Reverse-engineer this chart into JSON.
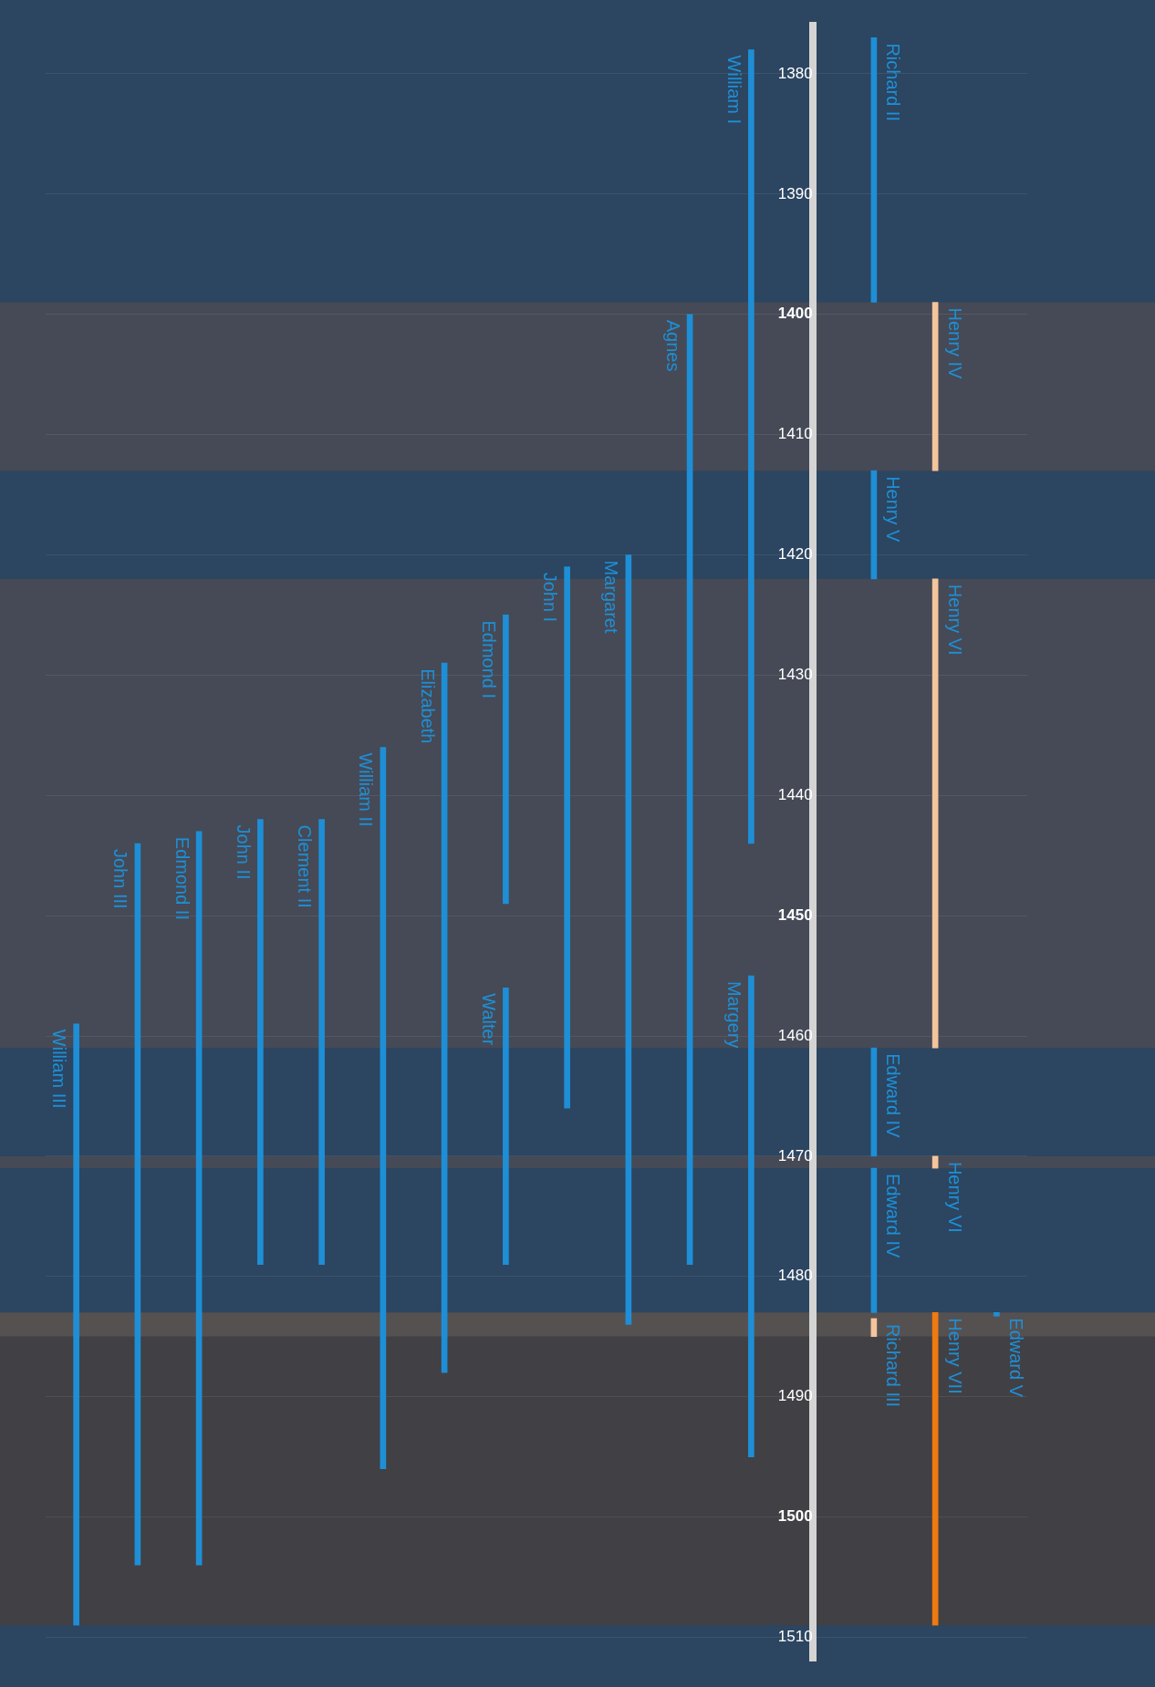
{
  "chart_data": {
    "type": "bar",
    "categories": [
      null,
      null,
      null,
      null,
      null,
      null,
      null,
      null,
      null,
      null,
      null,
      null,
      null,
      null,
      null,
      null
    ],
    "ylim": [
      1512,
      1376
    ],
    "yticks": [
      1380,
      1390,
      1400,
      1410,
      1420,
      1430,
      1440,
      1450,
      1460,
      1470,
      1480,
      1490,
      1500,
      1510
    ],
    "grid": "y",
    "legend": false,
    "tick_labels": "y",
    "bands": [
      {
        "axis": "y",
        "from": 1399,
        "to": 1413,
        "color": "#454a56"
      },
      {
        "axis": "y",
        "from": 1422,
        "to": 1461,
        "color": "#454a56"
      },
      {
        "axis": "y",
        "from": 1470,
        "to": 1471,
        "color": "#454a56"
      },
      {
        "axis": "y",
        "from": 1483,
        "to": 1485,
        "color": "#565151"
      },
      {
        "axis": "y",
        "from": 1485,
        "to": 1509,
        "color": "#414045"
      }
    ],
    "series": [
      {
        "name": "William III",
        "color": "#1e8fd6",
        "values": [
          50,
          null,
          null,
          null,
          null,
          null,
          null,
          null,
          null,
          null,
          null,
          null,
          null,
          null,
          null,
          null
        ],
        "base": [
          1459,
          null,
          null,
          null,
          null,
          null,
          null,
          null,
          null,
          null,
          null,
          null,
          null,
          null,
          null,
          null
        ]
      },
      {
        "name": "John III",
        "color": "#1e8fd6",
        "values": [
          null,
          60,
          null,
          null,
          null,
          null,
          null,
          null,
          null,
          null,
          null,
          null,
          null,
          null,
          null,
          null
        ],
        "base": [
          null,
          1444,
          null,
          null,
          null,
          null,
          null,
          null,
          null,
          null,
          null,
          null,
          null,
          null,
          null,
          null
        ]
      },
      {
        "name": "Edmond II",
        "color": "#1e8fd6",
        "values": [
          null,
          null,
          61,
          null,
          null,
          null,
          null,
          null,
          null,
          null,
          null,
          null,
          null,
          null,
          null,
          null
        ],
        "base": [
          null,
          null,
          1443,
          null,
          null,
          null,
          null,
          null,
          null,
          null,
          null,
          null,
          null,
          null,
          null,
          null
        ]
      },
      {
        "name": "John II",
        "color": "#1e8fd6",
        "values": [
          null,
          null,
          null,
          37,
          null,
          null,
          null,
          null,
          null,
          null,
          null,
          null,
          null,
          null,
          null,
          null
        ],
        "base": [
          null,
          null,
          null,
          1442,
          null,
          null,
          null,
          null,
          null,
          null,
          null,
          null,
          null,
          null,
          null,
          null
        ]
      },
      {
        "name": "Clement II",
        "color": "#1e8fd6",
        "values": [
          null,
          null,
          null,
          null,
          37,
          null,
          null,
          null,
          null,
          null,
          null,
          null,
          null,
          null,
          null,
          null
        ],
        "base": [
          null,
          null,
          null,
          null,
          1442,
          null,
          null,
          null,
          null,
          null,
          null,
          null,
          null,
          null,
          null,
          null
        ]
      },
      {
        "name": "William II",
        "color": "#1e8fd6",
        "values": [
          null,
          null,
          null,
          null,
          null,
          60,
          null,
          null,
          null,
          null,
          null,
          null,
          null,
          null,
          null,
          null
        ],
        "base": [
          null,
          null,
          null,
          null,
          null,
          1436,
          null,
          null,
          null,
          null,
          null,
          null,
          null,
          null,
          null,
          null
        ]
      },
      {
        "name": "Elizabeth",
        "color": "#1e8fd6",
        "values": [
          null,
          null,
          null,
          null,
          null,
          null,
          59,
          null,
          null,
          null,
          null,
          null,
          null,
          null,
          null,
          null
        ],
        "base": [
          null,
          null,
          null,
          null,
          null,
          null,
          1429,
          null,
          null,
          null,
          null,
          null,
          null,
          null,
          null,
          null
        ]
      },
      {
        "name": "Edmond I",
        "color": "#1e8fd6",
        "values": [
          null,
          null,
          null,
          null,
          null,
          null,
          null,
          24,
          null,
          null,
          null,
          null,
          null,
          null,
          null,
          null
        ],
        "base": [
          null,
          null,
          null,
          null,
          null,
          null,
          null,
          1425,
          null,
          null,
          null,
          null,
          null,
          null,
          null,
          null
        ]
      },
      {
        "name": "Walter",
        "color": "#1e8fd6",
        "values": [
          null,
          null,
          null,
          null,
          null,
          null,
          null,
          23,
          null,
          null,
          null,
          null,
          null,
          null,
          null,
          null
        ],
        "base": [
          null,
          null,
          null,
          null,
          null,
          null,
          null,
          1456,
          null,
          null,
          null,
          null,
          null,
          null,
          null,
          null
        ]
      },
      {
        "name": "John I",
        "color": "#1e8fd6",
        "values": [
          null,
          null,
          null,
          null,
          null,
          null,
          null,
          null,
          45,
          null,
          null,
          null,
          null,
          null,
          null,
          null
        ],
        "base": [
          null,
          null,
          null,
          null,
          null,
          null,
          null,
          null,
          1421,
          null,
          null,
          null,
          null,
          null,
          null,
          null
        ]
      },
      {
        "name": "Margaret",
        "color": "#1e8fd6",
        "values": [
          null,
          null,
          null,
          null,
          null,
          null,
          null,
          null,
          null,
          64,
          null,
          null,
          null,
          null,
          null,
          null
        ],
        "base": [
          null,
          null,
          null,
          null,
          null,
          null,
          null,
          null,
          null,
          1420,
          null,
          null,
          null,
          null,
          null,
          null
        ]
      },
      {
        "name": "Agnes",
        "color": "#1e8fd6",
        "values": [
          null,
          null,
          null,
          null,
          null,
          null,
          null,
          null,
          null,
          null,
          79,
          null,
          null,
          null,
          null,
          null
        ],
        "base": [
          null,
          null,
          null,
          null,
          null,
          null,
          null,
          null,
          null,
          null,
          1400,
          null,
          null,
          null,
          null,
          null
        ]
      },
      {
        "name": "William I",
        "color": "#1e8fd6",
        "values": [
          null,
          null,
          null,
          null,
          null,
          null,
          null,
          null,
          null,
          null,
          null,
          66,
          null,
          null,
          null,
          null
        ],
        "base": [
          null,
          null,
          null,
          null,
          null,
          null,
          null,
          null,
          null,
          null,
          null,
          1378,
          null,
          null,
          null,
          null
        ]
      },
      {
        "name": "Margery",
        "color": "#1e8fd6",
        "values": [
          null,
          null,
          null,
          null,
          null,
          null,
          null,
          null,
          null,
          null,
          null,
          40,
          null,
          null,
          null,
          null
        ],
        "base": [
          null,
          null,
          null,
          null,
          null,
          null,
          null,
          null,
          null,
          null,
          null,
          1455,
          null,
          null,
          null,
          null
        ]
      },
      {
        "name": "Richard II",
        "color": "#1e8fd6",
        "values": [
          null,
          null,
          null,
          null,
          null,
          null,
          null,
          null,
          null,
          null,
          null,
          null,
          null,
          22,
          null,
          null
        ],
        "base": [
          null,
          null,
          null,
          null,
          null,
          null,
          null,
          null,
          null,
          null,
          null,
          null,
          null,
          1377,
          null,
          null
        ]
      },
      {
        "name": "Henry V",
        "color": "#1e8fd6",
        "values": [
          null,
          null,
          null,
          null,
          null,
          null,
          null,
          null,
          null,
          null,
          null,
          null,
          null,
          9,
          null,
          null
        ],
        "base": [
          null,
          null,
          null,
          null,
          null,
          null,
          null,
          null,
          null,
          null,
          null,
          null,
          null,
          1413,
          null,
          null
        ]
      },
      {
        "name": "Edward IV",
        "color": "#1e8fd6",
        "values": [
          null,
          null,
          null,
          null,
          null,
          null,
          null,
          null,
          null,
          null,
          null,
          null,
          null,
          9,
          null,
          null
        ],
        "base": [
          null,
          null,
          null,
          null,
          null,
          null,
          null,
          null,
          null,
          null,
          null,
          null,
          null,
          1461,
          null,
          null
        ]
      },
      {
        "name": "Edward IV",
        "color": "#1e8fd6",
        "values": [
          null,
          null,
          null,
          null,
          null,
          null,
          null,
          null,
          null,
          null,
          null,
          null,
          null,
          12,
          null,
          null
        ],
        "base": [
          null,
          null,
          null,
          null,
          null,
          null,
          null,
          null,
          null,
          null,
          null,
          null,
          null,
          1471,
          null,
          null
        ]
      },
      {
        "name": "Richard III",
        "color": "#f4c49c",
        "values": [
          null,
          null,
          null,
          null,
          null,
          null,
          null,
          null,
          null,
          null,
          null,
          null,
          null,
          1.5,
          null,
          null
        ],
        "base": [
          null,
          null,
          null,
          null,
          null,
          null,
          null,
          null,
          null,
          null,
          null,
          null,
          null,
          1483.5,
          null,
          null
        ]
      },
      {
        "name": "Henry IV",
        "color": "#f4c49c",
        "values": [
          null,
          null,
          null,
          null,
          null,
          null,
          null,
          null,
          null,
          null,
          null,
          null,
          null,
          null,
          14,
          null
        ],
        "base": [
          null,
          null,
          null,
          null,
          null,
          null,
          null,
          null,
          null,
          null,
          null,
          null,
          null,
          null,
          1399,
          null
        ]
      },
      {
        "name": "Henry VI",
        "color": "#f4c49c",
        "values": [
          null,
          null,
          null,
          null,
          null,
          null,
          null,
          null,
          null,
          null,
          null,
          null,
          null,
          null,
          39,
          null
        ],
        "base": [
          null,
          null,
          null,
          null,
          null,
          null,
          null,
          null,
          null,
          null,
          null,
          null,
          null,
          null,
          1422,
          null
        ]
      },
      {
        "name": "Henry VI",
        "color": "#f4c49c",
        "values": [
          null,
          null,
          null,
          null,
          null,
          null,
          null,
          null,
          null,
          null,
          null,
          null,
          null,
          null,
          1,
          null
        ],
        "base": [
          null,
          null,
          null,
          null,
          null,
          null,
          null,
          null,
          null,
          null,
          null,
          null,
          null,
          null,
          1470,
          null
        ]
      },
      {
        "name": "Henry VII",
        "color": "#f07a10",
        "values": [
          null,
          null,
          null,
          null,
          null,
          null,
          null,
          null,
          null,
          null,
          null,
          null,
          null,
          null,
          26,
          null
        ],
        "base": [
          null,
          null,
          null,
          null,
          null,
          null,
          null,
          null,
          null,
          null,
          null,
          null,
          null,
          null,
          1483,
          null
        ]
      },
      {
        "name": "Edward V",
        "color": "#1e8fd6",
        "values": [
          null,
          null,
          null,
          null,
          null,
          null,
          null,
          null,
          null,
          null,
          null,
          null,
          null,
          null,
          null,
          0.3
        ],
        "base": [
          null,
          null,
          null,
          null,
          null,
          null,
          null,
          null,
          null,
          null,
          null,
          null,
          null,
          null,
          null,
          1483
        ]
      }
    ]
  }
}
